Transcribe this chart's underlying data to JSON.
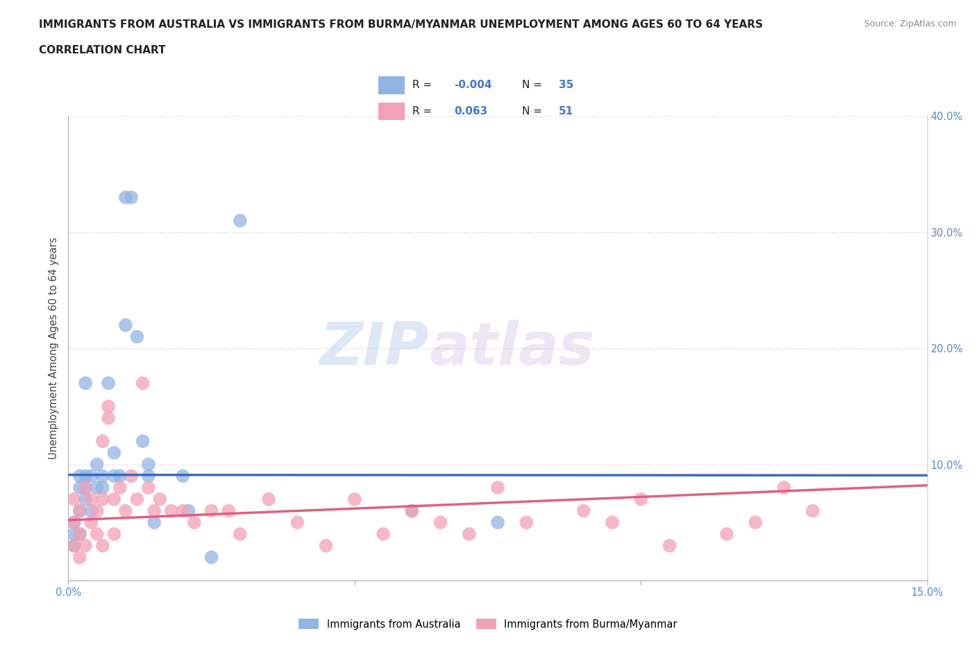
{
  "title_line1": "IMMIGRANTS FROM AUSTRALIA VS IMMIGRANTS FROM BURMA/MYANMAR UNEMPLOYMENT AMONG AGES 60 TO 64 YEARS",
  "title_line2": "CORRELATION CHART",
  "source_text": "Source: ZipAtlas.com",
  "ylabel": "Unemployment Among Ages 60 to 64 years",
  "xlim": [
    0.0,
    0.15
  ],
  "ylim": [
    0.0,
    0.4
  ],
  "watermark_zip": "ZIP",
  "watermark_atlas": "atlas",
  "legend_r_australia": "-0.004",
  "legend_n_australia": "35",
  "legend_r_burma": "0.063",
  "legend_n_burma": "51",
  "australia_color": "#92b4e3",
  "burma_color": "#f4a0b5",
  "australia_line_color": "#3a6bbf",
  "burma_line_color": "#e06080",
  "ref_line_color": "#7aaad8",
  "grid_color": "#cccccc",
  "australia_x": [
    0.001,
    0.001,
    0.001,
    0.002,
    0.002,
    0.002,
    0.002,
    0.003,
    0.003,
    0.003,
    0.003,
    0.004,
    0.004,
    0.005,
    0.005,
    0.006,
    0.006,
    0.007,
    0.008,
    0.008,
    0.009,
    0.01,
    0.01,
    0.011,
    0.012,
    0.013,
    0.014,
    0.014,
    0.015,
    0.02,
    0.021,
    0.025,
    0.03,
    0.06,
    0.075
  ],
  "australia_y": [
    0.03,
    0.04,
    0.05,
    0.04,
    0.06,
    0.08,
    0.09,
    0.07,
    0.08,
    0.09,
    0.17,
    0.06,
    0.09,
    0.08,
    0.1,
    0.08,
    0.09,
    0.17,
    0.09,
    0.11,
    0.09,
    0.33,
    0.22,
    0.33,
    0.21,
    0.12,
    0.09,
    0.1,
    0.05,
    0.09,
    0.06,
    0.02,
    0.31,
    0.06,
    0.05
  ],
  "burma_x": [
    0.001,
    0.001,
    0.001,
    0.002,
    0.002,
    0.002,
    0.003,
    0.003,
    0.004,
    0.004,
    0.005,
    0.005,
    0.006,
    0.006,
    0.006,
    0.007,
    0.007,
    0.008,
    0.008,
    0.009,
    0.01,
    0.011,
    0.012,
    0.013,
    0.014,
    0.015,
    0.016,
    0.018,
    0.02,
    0.022,
    0.025,
    0.028,
    0.03,
    0.035,
    0.04,
    0.045,
    0.05,
    0.055,
    0.06,
    0.065,
    0.07,
    0.075,
    0.08,
    0.09,
    0.095,
    0.1,
    0.105,
    0.115,
    0.12,
    0.125,
    0.13
  ],
  "burma_y": [
    0.03,
    0.05,
    0.07,
    0.02,
    0.04,
    0.06,
    0.03,
    0.08,
    0.05,
    0.07,
    0.04,
    0.06,
    0.03,
    0.07,
    0.12,
    0.15,
    0.14,
    0.04,
    0.07,
    0.08,
    0.06,
    0.09,
    0.07,
    0.17,
    0.08,
    0.06,
    0.07,
    0.06,
    0.06,
    0.05,
    0.06,
    0.06,
    0.04,
    0.07,
    0.05,
    0.03,
    0.07,
    0.04,
    0.06,
    0.05,
    0.04,
    0.08,
    0.05,
    0.06,
    0.05,
    0.07,
    0.03,
    0.04,
    0.05,
    0.08,
    0.06
  ],
  "ref_line_y": 0.091,
  "australia_reg_intercept": 0.091,
  "australia_reg_slope": -0.003,
  "burma_reg_intercept": 0.052,
  "burma_reg_slope": 0.2,
  "title_fontsize": 11,
  "source_fontsize": 9,
  "ylabel_fontsize": 10.5,
  "tick_fontsize": 10.5,
  "legend_fontsize": 11
}
